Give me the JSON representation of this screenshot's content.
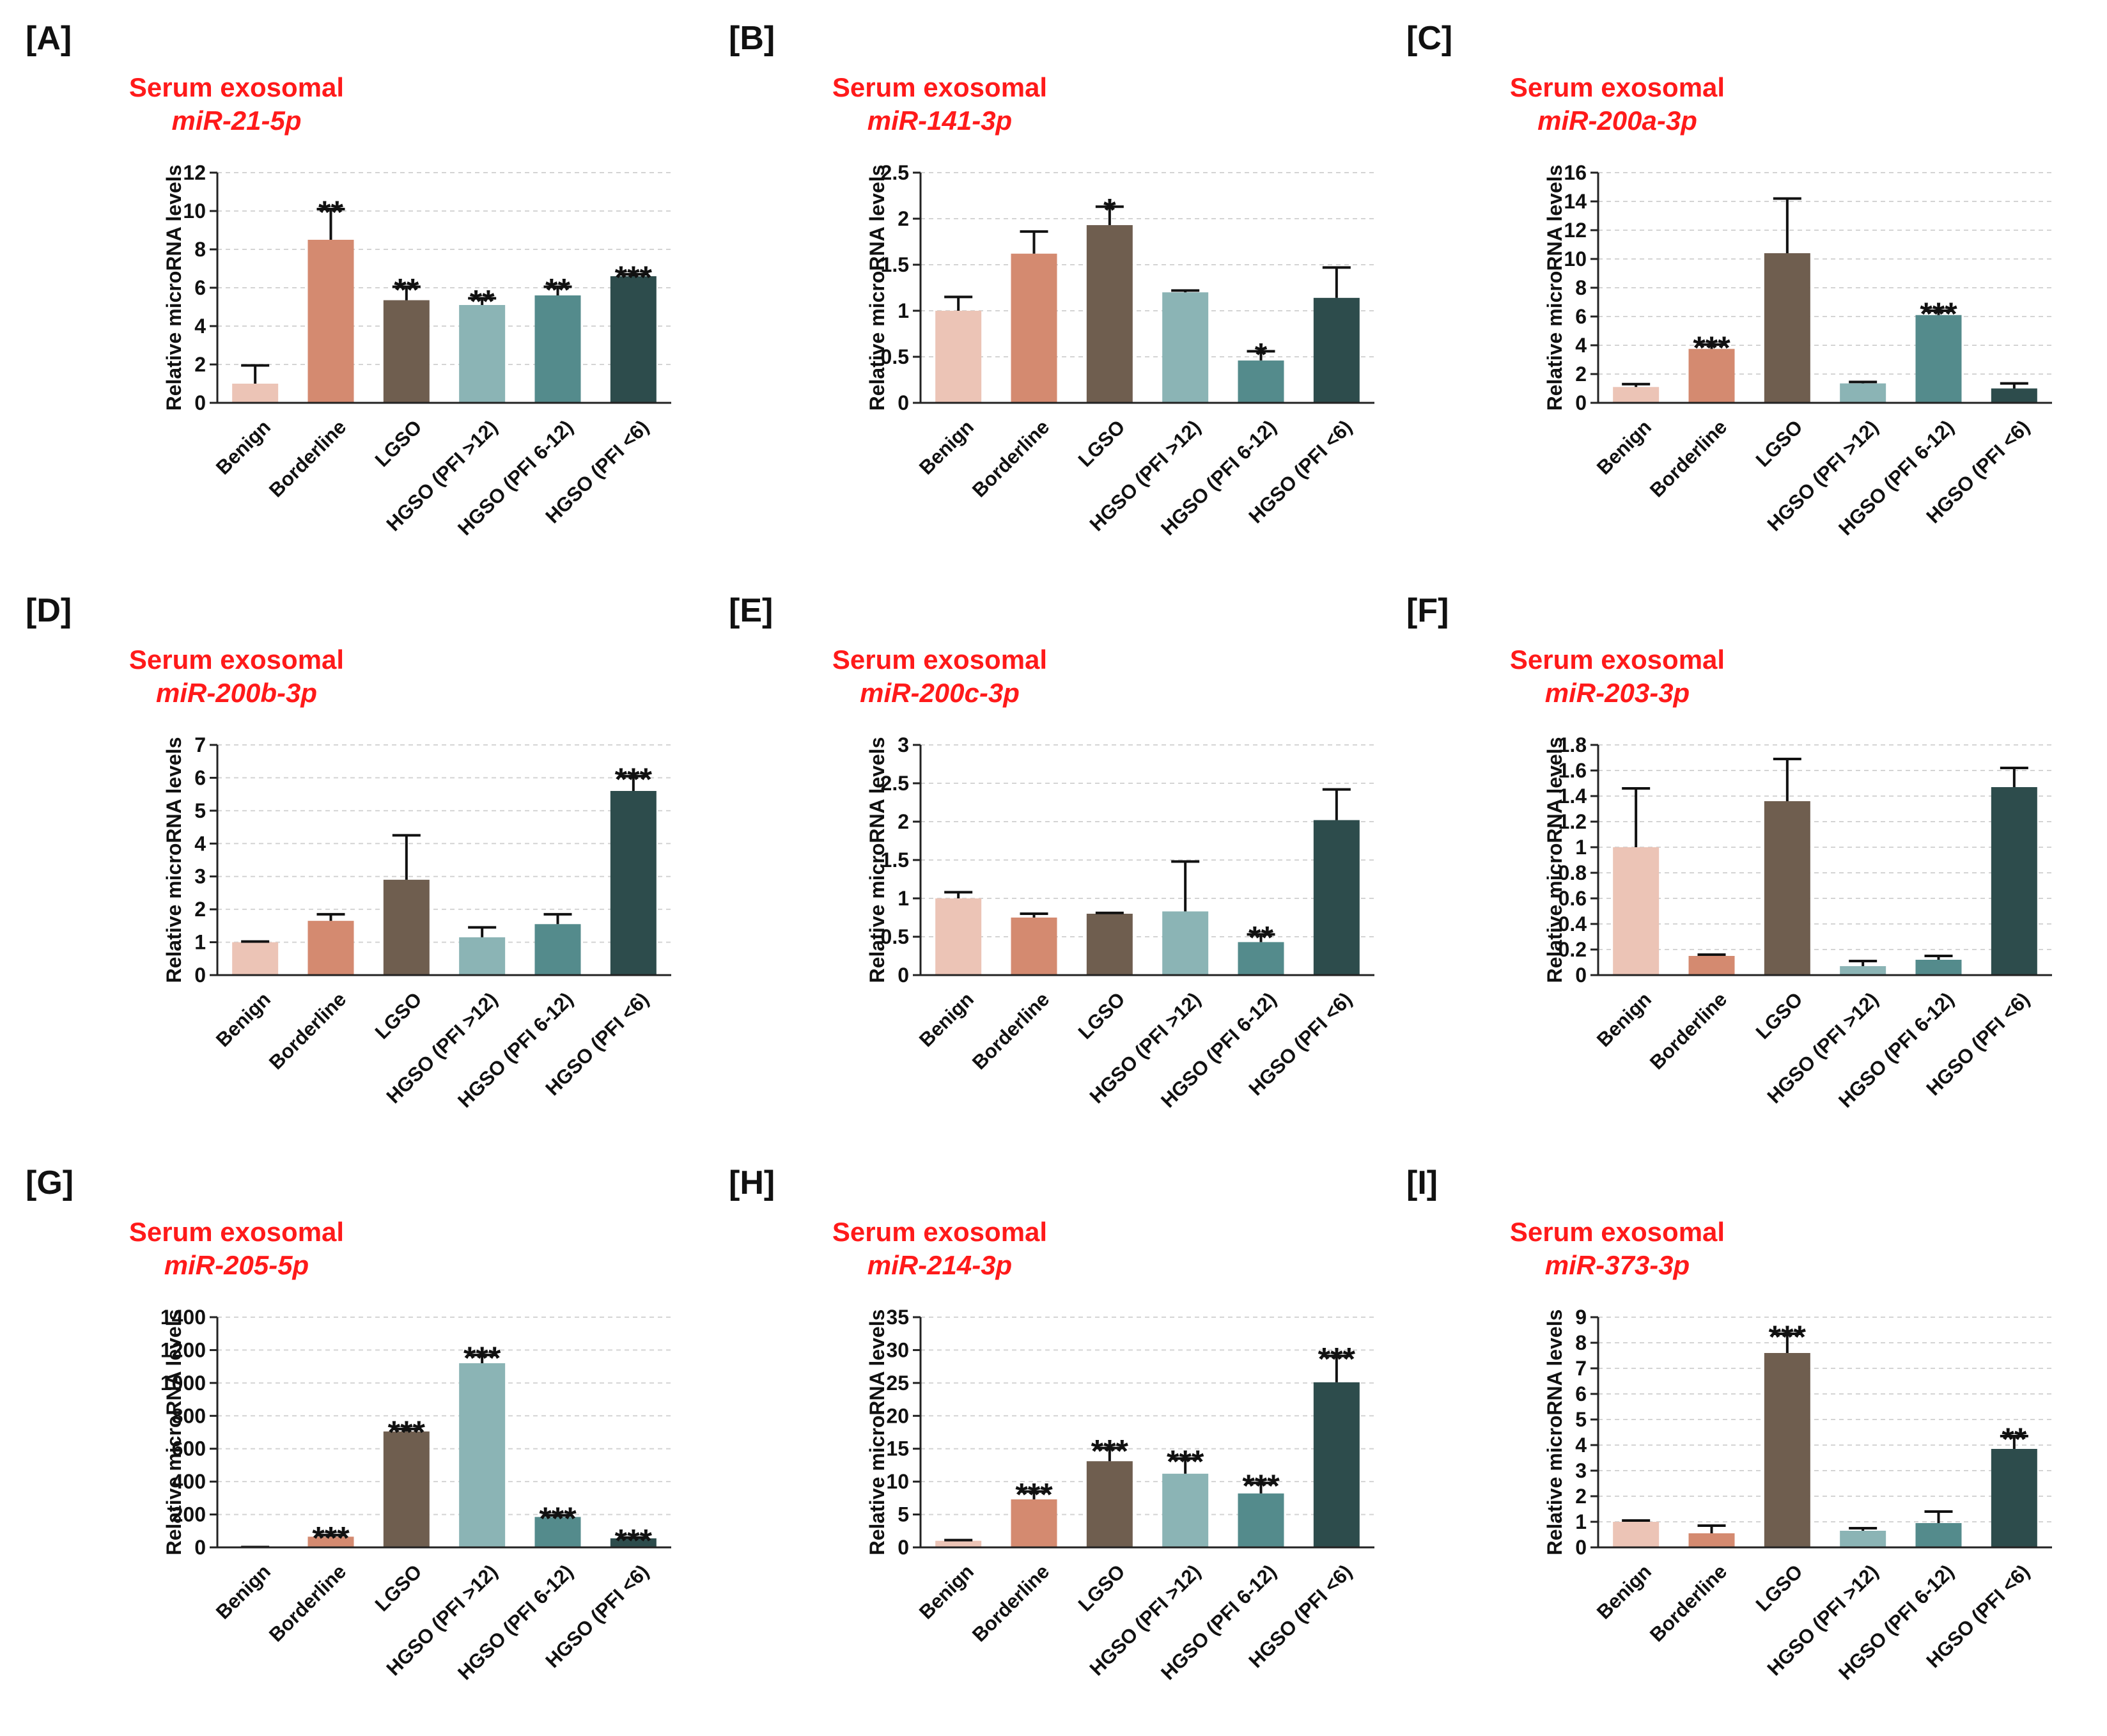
{
  "colors": {
    "accent": "#ff1a1a",
    "bars": [
      "#ecc4b6",
      "#d48a70",
      "#6f5e4f",
      "#8bb4b5",
      "#548b8c",
      "#2d4c4c"
    ],
    "axis": "#222222",
    "grid": "#d4d4d4"
  },
  "chart_data": [
    {
      "type": "bar",
      "panel": "[A]",
      "title": "Serum exosomal",
      "subtitle": "miR-21-5p",
      "ylabel": "Relative microRNA levels",
      "xlabel": "",
      "categories": [
        "Benign",
        "Borderline",
        "LGSO",
        "HGSO (PFI >12)",
        "HGSO (PFI 6-12)",
        "HGSO (PFI <6)"
      ],
      "values": [
        1.0,
        8.5,
        5.35,
        5.1,
        5.6,
        6.6
      ],
      "errors": [
        0.95,
        1.6,
        0.7,
        0.35,
        0.45,
        0.1
      ],
      "significance": [
        "",
        "**",
        "**",
        "**",
        "**",
        "***"
      ],
      "ylim": [
        0,
        12
      ],
      "yticks": [
        0,
        2,
        4,
        6,
        8,
        10,
        12
      ],
      "ytick_labels": [
        "0",
        "2",
        "4",
        "6",
        "8",
        "10",
        "12"
      ],
      "grid": true
    },
    {
      "type": "bar",
      "panel": "[B]",
      "title": "Serum exosomal",
      "subtitle": "miR-141-3p",
      "ylabel": "Relative microRNA levels",
      "xlabel": "",
      "categories": [
        "Benign",
        "Borderline",
        "LGSO",
        "HGSO (PFI >12)",
        "HGSO (PFI 6-12)",
        "HGSO (PFI <6)"
      ],
      "values": [
        1.0,
        1.62,
        1.93,
        1.2,
        0.46,
        1.14
      ],
      "errors": [
        0.15,
        0.24,
        0.2,
        0.02,
        0.1,
        0.33
      ],
      "significance": [
        "",
        "",
        "*",
        "",
        "*",
        ""
      ],
      "ylim": [
        0,
        2.5
      ],
      "yticks": [
        0,
        0.5,
        1,
        1.5,
        2,
        2.5
      ],
      "ytick_labels": [
        "0",
        "0.5",
        "1",
        "1.5",
        "2",
        "2.5"
      ],
      "grid": true
    },
    {
      "type": "bar",
      "panel": "[C]",
      "title": "Serum exosomal",
      "subtitle": "miR-200a-3p",
      "ylabel": "Relative microRNA levels",
      "xlabel": "",
      "categories": [
        "Benign",
        "Borderline",
        "LGSO",
        "HGSO (PFI >12)",
        "HGSO (PFI 6-12)",
        "HGSO (PFI <6)"
      ],
      "values": [
        1.1,
        3.75,
        10.4,
        1.35,
        6.1,
        1.0
      ],
      "errors": [
        0.2,
        0.3,
        3.8,
        0.1,
        0.3,
        0.35
      ],
      "significance": [
        "",
        "***",
        "",
        "",
        "***",
        ""
      ],
      "ylim": [
        0,
        16
      ],
      "yticks": [
        0,
        2,
        4,
        6,
        8,
        10,
        12,
        14,
        16
      ],
      "ytick_labels": [
        "0",
        "2",
        "4",
        "6",
        "8",
        "10",
        "12",
        "14",
        "16"
      ],
      "grid": true
    },
    {
      "type": "bar",
      "panel": "[D]",
      "title": "Serum exosomal",
      "subtitle": "miR-200b-3p",
      "ylabel": "Relative microRNA levels",
      "xlabel": "",
      "categories": [
        "Benign",
        "Borderline",
        "LGSO",
        "HGSO (PFI >12)",
        "HGSO (PFI 6-12)",
        "HGSO (PFI <6)"
      ],
      "values": [
        1.0,
        1.65,
        2.9,
        1.15,
        1.55,
        5.6
      ],
      "errors": [
        0.02,
        0.2,
        1.35,
        0.3,
        0.3,
        0.45
      ],
      "significance": [
        "",
        "",
        "",
        "",
        "",
        "***"
      ],
      "ylim": [
        0,
        7
      ],
      "yticks": [
        0,
        1,
        2,
        3,
        4,
        5,
        6,
        7
      ],
      "ytick_labels": [
        "0",
        "1",
        "2",
        "3",
        "4",
        "5",
        "6",
        "7"
      ],
      "grid": true
    },
    {
      "type": "bar",
      "panel": "[E]",
      "title": "Serum exosomal",
      "subtitle": "miR-200c-3p",
      "ylabel": "Relative microRNA levels",
      "xlabel": "",
      "categories": [
        "Benign",
        "Borderline",
        "LGSO",
        "HGSO (PFI >12)",
        "HGSO (PFI 6-12)",
        "HGSO (PFI <6)"
      ],
      "values": [
        1.0,
        0.75,
        0.8,
        0.83,
        0.43,
        2.02
      ],
      "errors": [
        0.08,
        0.05,
        0.01,
        0.65,
        0.1,
        0.4
      ],
      "significance": [
        "",
        "",
        "",
        "",
        "**",
        ""
      ],
      "ylim": [
        0,
        3
      ],
      "yticks": [
        0,
        0.5,
        1,
        1.5,
        2,
        2.5,
        3
      ],
      "ytick_labels": [
        "0",
        "0.5",
        "1",
        "1.5",
        "2",
        "2.5",
        "3"
      ],
      "grid": true
    },
    {
      "type": "bar",
      "panel": "[F]",
      "title": "Serum exosomal",
      "subtitle": "miR-203-3p",
      "ylabel": "Relative microRNA levels",
      "xlabel": "",
      "categories": [
        "Benign",
        "Borderline",
        "LGSO",
        "HGSO (PFI >12)",
        "HGSO (PFI 6-12)",
        "HGSO (PFI <6)"
      ],
      "values": [
        1.0,
        0.15,
        1.36,
        0.07,
        0.12,
        1.47
      ],
      "errors": [
        0.46,
        0.01,
        0.33,
        0.04,
        0.03,
        0.15
      ],
      "significance": [
        "",
        "",
        "",
        "",
        "",
        ""
      ],
      "ylim": [
        0,
        1.8
      ],
      "yticks": [
        0,
        0.2,
        0.4,
        0.6,
        0.8,
        1,
        1.2,
        1.4,
        1.6,
        1.8
      ],
      "ytick_labels": [
        "0",
        "0.2",
        "0.4",
        "0.6",
        "0.8",
        "1",
        "1.2",
        "1.4",
        "1.6",
        "1.8"
      ],
      "grid": true
    },
    {
      "type": "bar",
      "panel": "[G]",
      "title": "Serum exosomal",
      "subtitle": "miR-205-5p",
      "ylabel": "Relative microRNA levels",
      "xlabel": "",
      "categories": [
        "Benign",
        "Borderline",
        "LGSO",
        "HGSO (PFI >12)",
        "HGSO (PFI 6-12)",
        "HGSO (PFI <6)"
      ],
      "values": [
        1,
        65,
        705,
        1120,
        185,
        55
      ],
      "errors": [
        1,
        10,
        15,
        50,
        10,
        5
      ],
      "significance": [
        "",
        "***",
        "***",
        "***",
        "***",
        "***"
      ],
      "ylim": [
        0,
        1400
      ],
      "yticks": [
        0,
        200,
        400,
        600,
        800,
        1000,
        1200,
        1400
      ],
      "ytick_labels": [
        "0",
        "200",
        "400",
        "600",
        "800",
        "1000",
        "1200",
        "1400"
      ],
      "grid": true
    },
    {
      "type": "bar",
      "panel": "[H]",
      "title": "Serum exosomal",
      "subtitle": "miR-214-3p",
      "ylabel": "Relative microRNA levels",
      "xlabel": "",
      "categories": [
        "Benign",
        "Borderline",
        "LGSO",
        "HGSO (PFI >12)",
        "HGSO (PFI 6-12)",
        "HGSO (PFI <6)"
      ],
      "values": [
        1.0,
        7.3,
        13.1,
        11.2,
        8.2,
        25.1
      ],
      "errors": [
        0.1,
        1.2,
        2.0,
        2.3,
        1.6,
        4.0
      ],
      "significance": [
        "",
        "***",
        "***",
        "***",
        "***",
        "***"
      ],
      "ylim": [
        0,
        35
      ],
      "yticks": [
        0,
        5,
        10,
        15,
        20,
        25,
        30,
        35
      ],
      "ytick_labels": [
        "0",
        "5",
        "10",
        "15",
        "20",
        "25",
        "30",
        "35"
      ],
      "grid": true
    },
    {
      "type": "bar",
      "panel": "[I]",
      "title": "Serum exosomal",
      "subtitle": "miR-373-3p",
      "ylabel": "Relative microRNA levels",
      "xlabel": "",
      "categories": [
        "Benign",
        "Borderline",
        "LGSO",
        "HGSO (PFI >12)",
        "HGSO (PFI 6-12)",
        "HGSO (PFI <6)"
      ],
      "values": [
        1.0,
        0.55,
        7.6,
        0.65,
        0.95,
        3.85
      ],
      "errors": [
        0.05,
        0.3,
        0.75,
        0.1,
        0.45,
        0.5
      ],
      "significance": [
        "",
        "",
        "***",
        "",
        "",
        "**"
      ],
      "ylim": [
        0,
        9
      ],
      "yticks": [
        0,
        1,
        2,
        3,
        4,
        5,
        6,
        7,
        8,
        9
      ],
      "ytick_labels": [
        "0",
        "1",
        "2",
        "3",
        "4",
        "5",
        "6",
        "7",
        "8",
        "9"
      ],
      "grid": true
    }
  ]
}
